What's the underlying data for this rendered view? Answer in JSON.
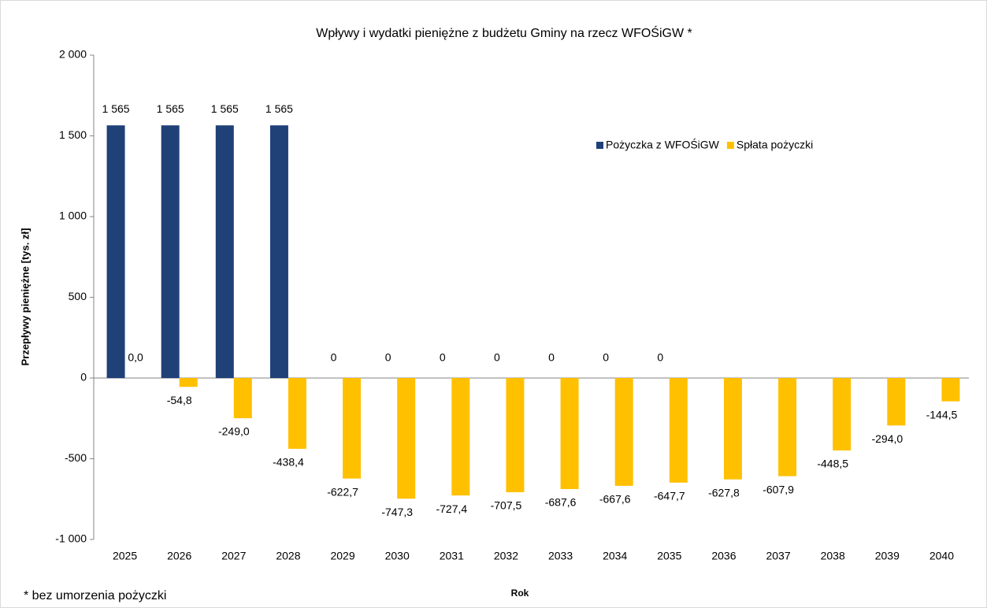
{
  "chart_data": {
    "type": "bar",
    "title": "Wpływy i wydatki pieniężne z budżetu Gminy na rzecz WFOŚiGW *",
    "x_label": "Rok",
    "y_label": "Przepływy pieniężne [tys. zł]",
    "note": "* bez umorzenia pożyczki",
    "categories": [
      "2025",
      "2026",
      "2027",
      "2028",
      "2029",
      "2030",
      "2031",
      "2032",
      "2033",
      "2034",
      "2035",
      "2036",
      "2037",
      "2038",
      "2039",
      "2040"
    ],
    "series": [
      {
        "name": "Pożyczka z WFOŚiGW",
        "color": "#1f4178",
        "values": [
          1565,
          1565,
          1565,
          1565,
          0,
          0,
          0,
          0,
          0,
          0,
          0,
          null,
          null,
          null,
          null,
          null
        ],
        "value_labels": [
          "1 565",
          "1 565",
          "1 565",
          "1 565",
          "0",
          "0",
          "0",
          "0",
          "0",
          "0",
          "0",
          null,
          null,
          null,
          null,
          null
        ]
      },
      {
        "name": "Spłata pożyczki",
        "color": "#ffc000",
        "values": [
          0,
          -54.8,
          -249.0,
          -438.4,
          -622.7,
          -747.3,
          -727.4,
          -707.5,
          -687.6,
          -667.6,
          -647.7,
          -627.8,
          -607.9,
          -448.5,
          -294.0,
          -144.5
        ],
        "value_labels": [
          "0,0",
          "-54,8",
          "-249,0",
          "-438,4",
          "-622,7",
          "-747,3",
          "-727,4",
          "-707,5",
          "-687,6",
          "-667,6",
          "-647,7",
          "-627,8",
          "-607,9",
          "-448,5",
          "-294,0",
          "-144,5"
        ]
      }
    ],
    "ylim": [
      -1000,
      2000
    ],
    "yticks": [
      {
        "value": -1000,
        "label": "-1 000"
      },
      -500,
      0,
      500,
      {
        "value": 1000,
        "label": "1 000"
      },
      {
        "value": 1500,
        "label": "1 500"
      },
      {
        "value": 2000,
        "label": "2 000"
      }
    ],
    "legend": "top-right",
    "grid": false
  }
}
